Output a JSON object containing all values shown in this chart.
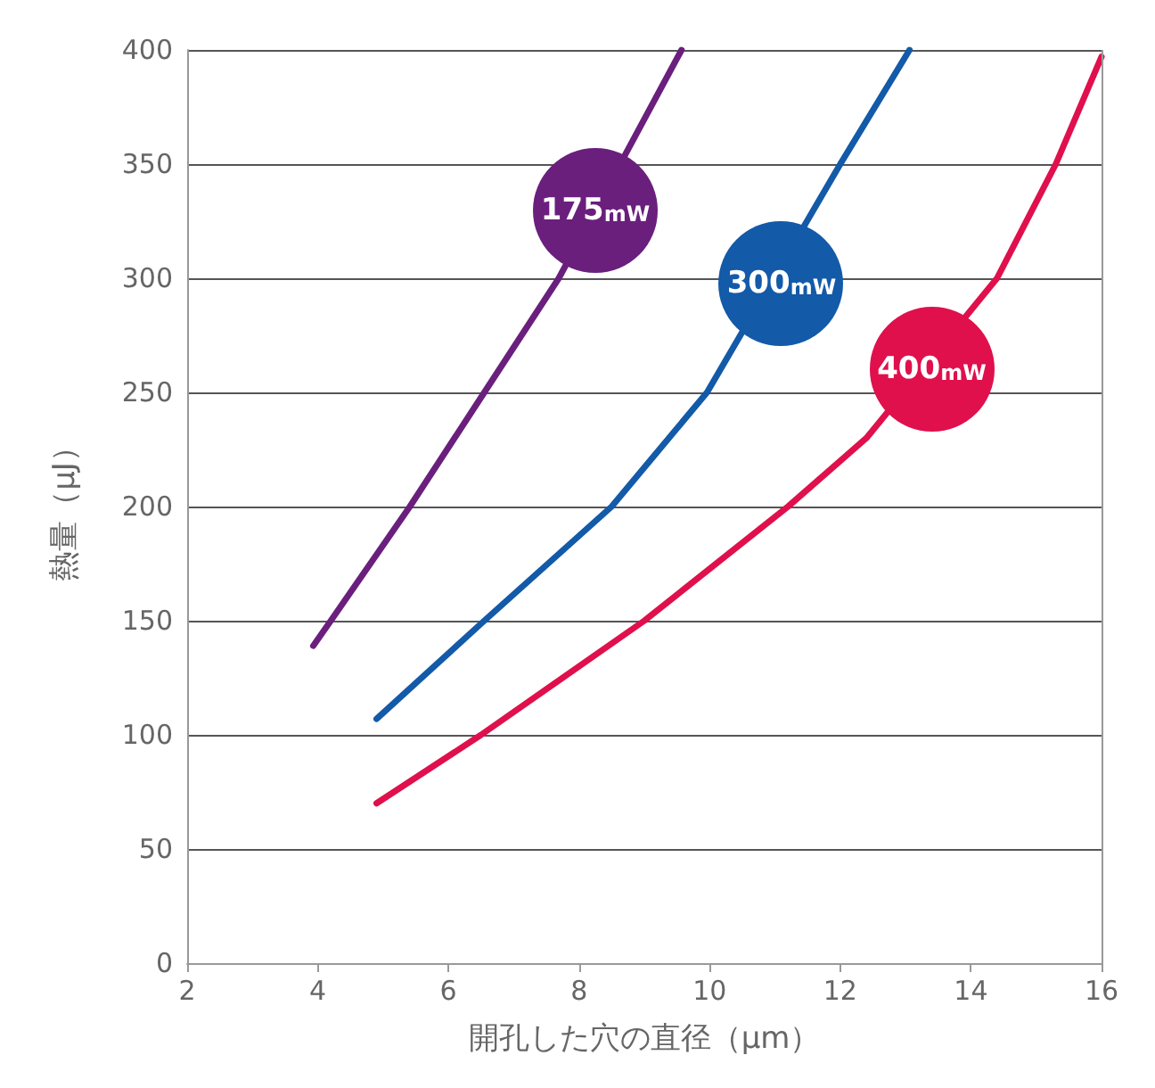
{
  "chart_data": {
    "type": "line",
    "xlabel": "開孔した穴の直径（μm）",
    "ylabel": "熱量（μJ）",
    "xlim": [
      2,
      16
    ],
    "xticks": [
      2,
      4,
      6,
      8,
      10,
      12,
      14,
      16
    ],
    "ylim": [
      0,
      400
    ],
    "yticks": [
      0,
      50,
      100,
      150,
      200,
      250,
      300,
      350,
      400
    ],
    "grid": "y",
    "marker": "none",
    "line_style": "solid",
    "series": [
      {
        "color": "#6a1f7d",
        "x": [
          3.93,
          4.2,
          5.41,
          6.55,
          7.69,
          9.57
        ],
        "values": [
          139,
          150,
          200,
          250,
          300,
          400
        ]
      },
      {
        "color": "#135aa8",
        "x": [
          4.9,
          6.55,
          8.5,
          9.96,
          12,
          13.06
        ],
        "values": [
          107,
          150,
          200,
          250,
          350,
          400
        ]
      },
      {
        "color": "#e0104c",
        "x": [
          4.9,
          6.5,
          9,
          11.2,
          12.4,
          14.4,
          15.3,
          16
        ],
        "values": [
          70,
          100,
          150,
          200,
          230,
          300,
          350,
          397
        ]
      }
    ],
    "annotations": [
      {
        "text": "175mW",
        "x": 8.25,
        "y": 330
      },
      {
        "text": "300mW",
        "x": 11.1,
        "y": 298
      },
      {
        "text": "400mW",
        "x": 13.4,
        "y": 260
      }
    ]
  }
}
